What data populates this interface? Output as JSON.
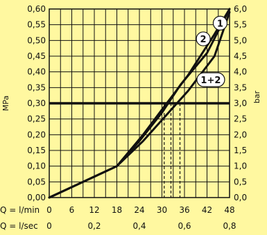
{
  "chart_data": {
    "type": "line",
    "background": "#fff8a0",
    "line_color": "#111111",
    "grid": true,
    "ylabel_left": "MPa",
    "ylabel_right": "bar",
    "ylim": [
      0,
      0.6
    ],
    "y_ticks_left": [
      "0,00",
      "0,05",
      "0,10",
      "0,15",
      "0,20",
      "0,25",
      "0,30",
      "0,35",
      "0,40",
      "0,45",
      "0,50",
      "0,55",
      "0,60"
    ],
    "y_ticks_right": [
      "0,0",
      "0,5",
      "1,0",
      "1,5",
      "2,0",
      "2,5",
      "3,0",
      "3,5",
      "4,0",
      "4,5",
      "5,0",
      "5,5",
      "6,0"
    ],
    "xlim": [
      0,
      48
    ],
    "x_axis_rows": [
      {
        "label": "Q = l/min",
        "ticks": [
          {
            "x": 0,
            "text": "0"
          },
          {
            "x": 6,
            "text": "6"
          },
          {
            "x": 12,
            "text": "12"
          },
          {
            "x": 18,
            "text": "18"
          },
          {
            "x": 24,
            "text": "24"
          },
          {
            "x": 30,
            "text": "30"
          },
          {
            "x": 36,
            "text": "36"
          },
          {
            "x": 42,
            "text": "42"
          },
          {
            "x": 48,
            "text": "48"
          }
        ]
      },
      {
        "label": "Q = l/sec",
        "ticks": [
          {
            "x": 0,
            "text": "0"
          },
          {
            "x": 12,
            "text": "0,2"
          },
          {
            "x": 24,
            "text": "0,4"
          },
          {
            "x": 36,
            "text": "0,6"
          },
          {
            "x": 48,
            "text": "0,8"
          }
        ]
      }
    ],
    "reference_line": {
      "y": 0.3
    },
    "dashed_markers": [
      {
        "x": 30.6,
        "y": 0.3
      },
      {
        "x": 32.4,
        "y": 0.3
      },
      {
        "x": 34.8,
        "y": 0.3
      }
    ],
    "series": [
      {
        "name": "1",
        "points": [
          [
            0,
            0
          ],
          [
            18,
            0.1
          ],
          [
            25,
            0.2
          ],
          [
            30,
            0.28
          ],
          [
            37,
            0.39
          ],
          [
            44,
            0.52
          ],
          [
            48,
            0.6
          ]
        ],
        "label_at": [
          45.5,
          0.555
        ]
      },
      {
        "name": "2",
        "points": [
          [
            0,
            0
          ],
          [
            18,
            0.1
          ],
          [
            24,
            0.18
          ],
          [
            30,
            0.27
          ],
          [
            35,
            0.36
          ],
          [
            42,
            0.46
          ],
          [
            48,
            0.6
          ]
        ],
        "label_at": [
          41,
          0.505
        ]
      },
      {
        "name": "1+2",
        "points": [
          [
            0,
            0
          ],
          [
            18,
            0.1
          ],
          [
            25,
            0.18
          ],
          [
            31,
            0.26
          ],
          [
            37,
            0.34
          ],
          [
            44,
            0.45
          ],
          [
            48,
            0.59
          ]
        ],
        "label_at": [
          43,
          0.375
        ]
      }
    ]
  }
}
